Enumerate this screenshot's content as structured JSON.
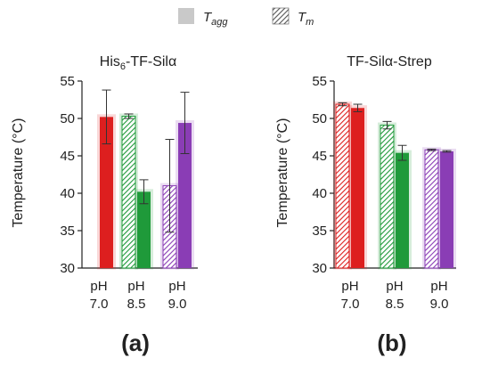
{
  "legend": {
    "solid": {
      "name": "T",
      "sub": "agg"
    },
    "hatched": {
      "name": "T",
      "sub": "m"
    }
  },
  "colors": {
    "pH 7.0": "#dd1f1f",
    "pH 8.5": "#1f9a3a",
    "pH 9.0": "#8a3db5",
    "axis": "#222222",
    "error_bar": "#333333"
  },
  "chart_data": [
    {
      "type": "bar",
      "panel": "(a)",
      "title": {
        "base": "His",
        "sub": "6",
        "rest": "-TF-Silα"
      },
      "ylabel": "Temperature (°C)",
      "ylim": [
        30,
        55
      ],
      "yticks": [
        30,
        35,
        40,
        45,
        50,
        55
      ],
      "categories": [
        [
          "pH",
          "7.0"
        ],
        [
          "pH",
          "8.5"
        ],
        [
          "pH",
          "9.0"
        ]
      ],
      "series": [
        {
          "name": "Tm",
          "style": "hatched",
          "values": [
            null,
            50.3,
            41.0
          ],
          "errors": [
            null,
            0.3,
            6.2
          ]
        },
        {
          "name": "Tagg",
          "style": "solid",
          "values": [
            50.2,
            40.2,
            49.4
          ],
          "errors": [
            3.6,
            1.6,
            4.1
          ]
        }
      ]
    },
    {
      "type": "bar",
      "panel": "(b)",
      "title": {
        "base": "TF-Silα-Strep",
        "sub": "",
        "rest": ""
      },
      "ylabel": "Temperature (°C)",
      "ylim": [
        30,
        55
      ],
      "yticks": [
        30,
        35,
        40,
        45,
        50,
        55
      ],
      "categories": [
        [
          "pH",
          "7.0"
        ],
        [
          "pH",
          "8.5"
        ],
        [
          "pH",
          "9.0"
        ]
      ],
      "series": [
        {
          "name": "Tm",
          "style": "hatched",
          "values": [
            51.9,
            49.1,
            45.8
          ],
          "errors": [
            0.2,
            0.5,
            0.1
          ]
        },
        {
          "name": "Tagg",
          "style": "solid",
          "values": [
            51.4,
            45.4,
            45.6
          ],
          "errors": [
            0.5,
            1.0,
            0.1
          ]
        }
      ]
    }
  ]
}
